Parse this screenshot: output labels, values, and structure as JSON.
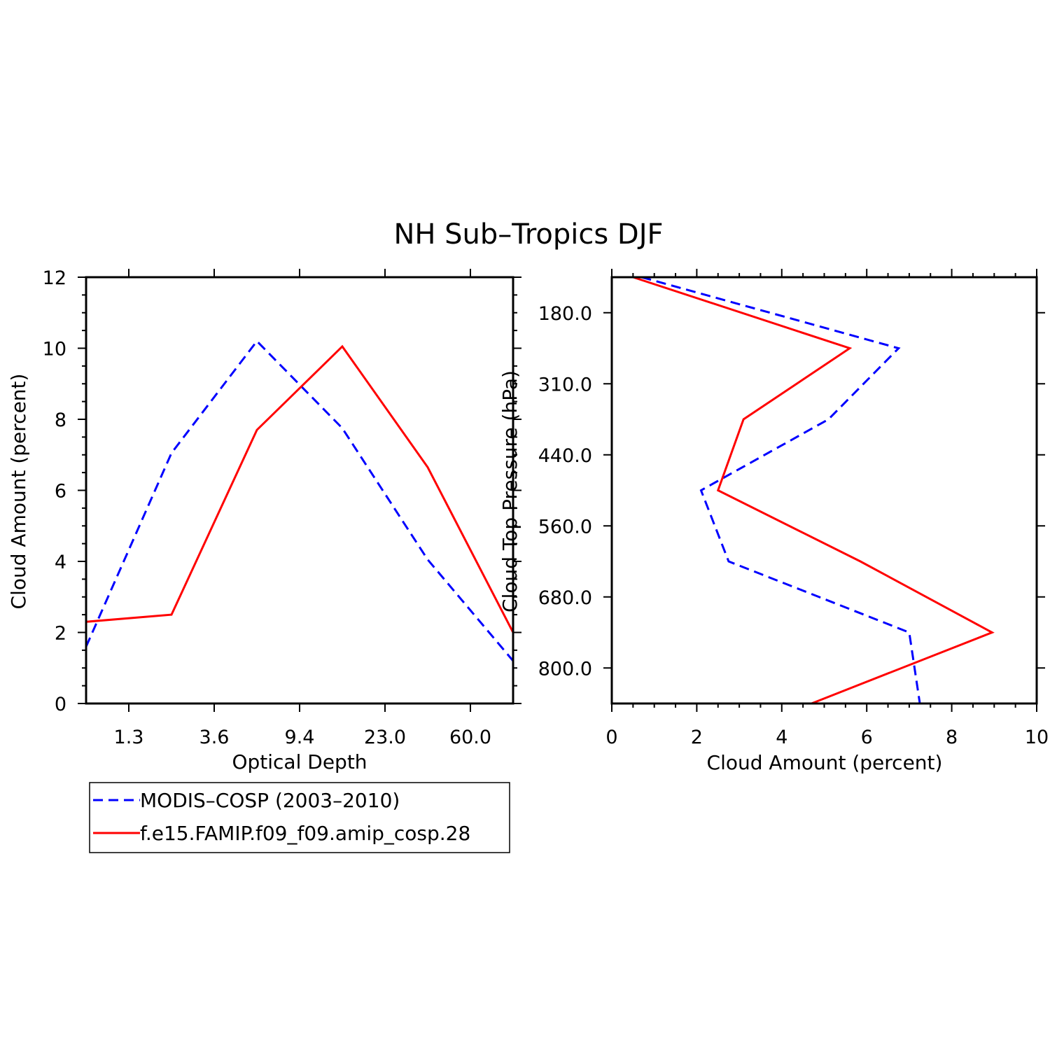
{
  "title": "NH Sub–Tropics DJF",
  "colors": {
    "obs": "#0000ff",
    "model": "#ff0000"
  },
  "legend": [
    {
      "label": "MODIS–COSP (2003–2010)",
      "color": "#0000ff",
      "style": "dashed"
    },
    {
      "label": "f.e15.FAMIP.f09_f09.amip_cosp.28",
      "color": "#ff0000",
      "style": "solid"
    }
  ],
  "chart_data": [
    {
      "type": "line",
      "xlabel": "Optical Depth",
      "ylabel": "Cloud Amount (percent)",
      "ylim": [
        0,
        12
      ],
      "yticks": [
        "0",
        "2",
        "4",
        "6",
        "8",
        "10",
        "12"
      ],
      "xtick_labels": [
        "1.3",
        "3.6",
        "9.4",
        "23.0",
        "60.0"
      ],
      "x_bins": [
        0,
        1,
        2,
        3,
        4,
        5
      ],
      "series": [
        {
          "name": "MODIS–COSP (2003–2010)",
          "values": [
            1.6,
            7.05,
            10.2,
            7.75,
            4.05,
            1.2
          ]
        },
        {
          "name": "f.e15.FAMIP.f09_f09.amip_cosp.28",
          "values": [
            2.3,
            2.5,
            7.7,
            10.05,
            6.65,
            2.0
          ]
        }
      ],
      "grid": false
    },
    {
      "type": "line",
      "xlabel": "Cloud Amount (percent)",
      "ylabel": "Cloud Top Pressure (hPa)",
      "xlim": [
        0,
        10
      ],
      "xticks": [
        "0",
        "2",
        "4",
        "6",
        "8",
        "10"
      ],
      "ytick_labels": [
        "180.0",
        "310.0",
        "440.0",
        "560.0",
        "680.0",
        "800.0"
      ],
      "y_bins": [
        0,
        1,
        2,
        3,
        4,
        5,
        6
      ],
      "series": [
        {
          "name": "MODIS–COSP (2003–2010)",
          "values": [
            0.7,
            6.75,
            5.1,
            2.1,
            2.75,
            7.0,
            7.25
          ]
        },
        {
          "name": "f.e15.FAMIP.f09_f09.amip_cosp.28",
          "values": [
            0.5,
            5.6,
            3.1,
            2.5,
            5.85,
            8.95,
            4.7
          ]
        }
      ],
      "grid": false
    }
  ]
}
